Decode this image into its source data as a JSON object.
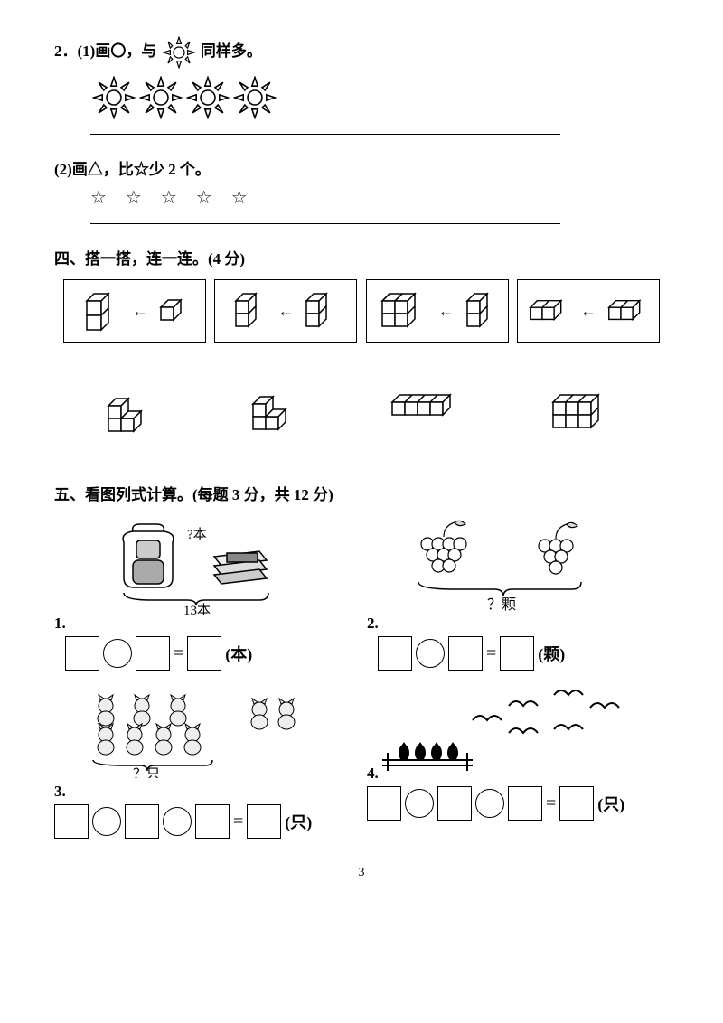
{
  "q2": {
    "part1_prefix": "2．(1)画〇，与",
    "part1_suffix": " 同样多。",
    "sun_count": 4,
    "part2_text": "(2)画△，比☆少 2 个。",
    "star_count": 5,
    "star_char": "☆"
  },
  "section4": {
    "title": "四、搭一搭，连一连。(4 分)"
  },
  "section5": {
    "title": "五、看图列式计算。(每题 3 分，共 12 分)",
    "q1_top_label": "?本",
    "q1_bottom_label": "13本",
    "q1_unit": "(本)",
    "q1_num": "1.",
    "q2_label": "？颗",
    "q2_unit": "(颗)",
    "q2_num": "2.",
    "q3_label": "？只",
    "q3_unit": "(只)",
    "q3_num": "3.",
    "q4_unit": "(只)",
    "q4_num": "4."
  },
  "page": "3",
  "svg": {
    "sun_small": 36,
    "sun_large": 48
  }
}
